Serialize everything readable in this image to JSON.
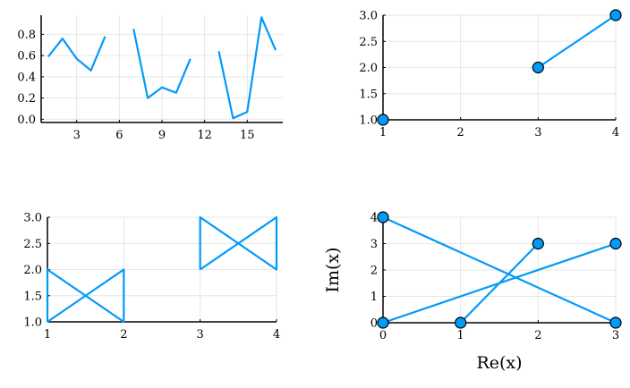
{
  "colors": {
    "series": "#009af9",
    "grid": "#e6e6e6",
    "axis": "#000000"
  },
  "chart_data": [
    {
      "type": "line",
      "title": "",
      "xlabel": "",
      "ylabel": "",
      "xlim": [
        0.5,
        17.5
      ],
      "ylim": [
        -0.03,
        0.98
      ],
      "xticks": [
        3,
        6,
        9,
        12,
        15
      ],
      "yticks": [
        0.0,
        0.2,
        0.4,
        0.6,
        0.8
      ],
      "ytick_labels": [
        "0.0",
        "0.2",
        "0.4",
        "0.6",
        "0.8"
      ],
      "grid": true,
      "markers": false,
      "series": [
        {
          "x": [
            1,
            2,
            3,
            4,
            5,
            6,
            7,
            8,
            9,
            10,
            11,
            12,
            13,
            14,
            15,
            16,
            17
          ],
          "values": [
            0.59,
            0.76,
            0.57,
            0.46,
            0.78,
            null,
            0.85,
            0.2,
            0.3,
            0.25,
            0.57,
            null,
            0.64,
            0.01,
            0.07,
            0.96,
            0.65
          ]
        }
      ]
    },
    {
      "type": "line",
      "title": "",
      "xlabel": "",
      "ylabel": "",
      "xlim": [
        1,
        4
      ],
      "ylim": [
        1,
        3
      ],
      "xticks": [
        1,
        2,
        3,
        4
      ],
      "yticks": [
        1.0,
        1.5,
        2.0,
        2.5,
        3.0
      ],
      "ytick_labels": [
        "1.0",
        "1.5",
        "2.0",
        "2.5",
        "3.0"
      ],
      "grid": true,
      "markers": true,
      "series": [
        {
          "x": [
            1,
            2,
            3,
            4
          ],
          "values": [
            1,
            null,
            2,
            3
          ]
        }
      ]
    },
    {
      "type": "line",
      "title": "",
      "xlabel": "",
      "ylabel": "",
      "xlim": [
        1,
        4
      ],
      "ylim": [
        1,
        3
      ],
      "xticks": [
        1,
        2,
        3,
        4
      ],
      "yticks": [
        1.0,
        1.5,
        2.0,
        2.5,
        3.0
      ],
      "ytick_labels": [
        "1.0",
        "1.5",
        "2.0",
        "2.5",
        "3.0"
      ],
      "grid": true,
      "markers": false,
      "series": [
        {
          "x": [
            1,
            1,
            2,
            2,
            1,
            null,
            3,
            3,
            4,
            4,
            3
          ],
          "values": [
            1,
            2,
            1,
            2,
            1,
            null,
            2,
            3,
            2,
            3,
            2
          ]
        }
      ]
    },
    {
      "type": "line",
      "title": "",
      "xlabel": "Re(x)",
      "ylabel": "Im(x)",
      "xlim": [
        0,
        3
      ],
      "ylim": [
        0,
        4
      ],
      "xticks": [
        0,
        1,
        2,
        3
      ],
      "yticks": [
        0,
        1,
        2,
        3,
        4
      ],
      "ytick_labels": [
        "0",
        "1",
        "2",
        "3",
        "4"
      ],
      "grid": true,
      "markers": true,
      "series": [
        {
          "x": [
            0,
            3,
            null,
            1,
            2,
            null,
            0,
            3
          ],
          "values": [
            0,
            3,
            null,
            0,
            3,
            null,
            4,
            0
          ]
        }
      ]
    }
  ]
}
